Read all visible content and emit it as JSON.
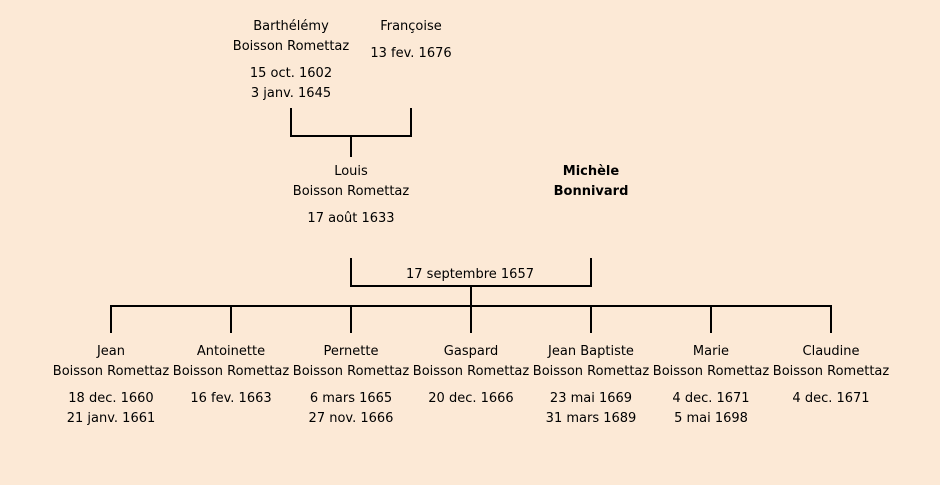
{
  "grandparents": {
    "father": {
      "first_name": "Barthélémy",
      "surname": "Boisson Romettaz",
      "birth": "15 oct. 1602",
      "death": "3 janv. 1645"
    },
    "mother": {
      "first_name": "Françoise",
      "surname": "",
      "birth": "",
      "death": "13 fev. 1676"
    }
  },
  "parents": {
    "father": {
      "first_name": "Louis",
      "surname": "Boisson Romettaz",
      "birth": "17 août 1633",
      "death": ""
    },
    "mother": {
      "first_name": "Michèle",
      "surname": "Bonnivard",
      "birth": "",
      "death": ""
    },
    "marriage_date": "17 septembre 1657"
  },
  "children": [
    {
      "first_name": "Jean",
      "surname": "Boisson Romettaz",
      "birth": "18 dec. 1660",
      "death": "21 janv. 1661"
    },
    {
      "first_name": "Antoinette",
      "surname": "Boisson Romettaz",
      "birth": "16 fev. 1663",
      "death": ""
    },
    {
      "first_name": "Pernette",
      "surname": "Boisson Romettaz",
      "birth": "6 mars 1665",
      "death": "27 nov. 1666"
    },
    {
      "first_name": "Gaspard",
      "surname": "Boisson Romettaz",
      "birth": "20 dec. 1666",
      "death": ""
    },
    {
      "first_name": "Jean Baptiste",
      "surname": "Boisson Romettaz",
      "birth": "23 mai 1669",
      "death": "31 mars 1689"
    },
    {
      "first_name": "Marie",
      "surname": "Boisson Romettaz",
      "birth": "4 dec. 1671",
      "death": "5 mai 1698"
    },
    {
      "first_name": "Claudine",
      "surname": "Boisson Romettaz",
      "birth": "4 dec. 1671",
      "death": ""
    }
  ],
  "colors": {
    "background": "#fce9d6",
    "line": "#000000"
  }
}
